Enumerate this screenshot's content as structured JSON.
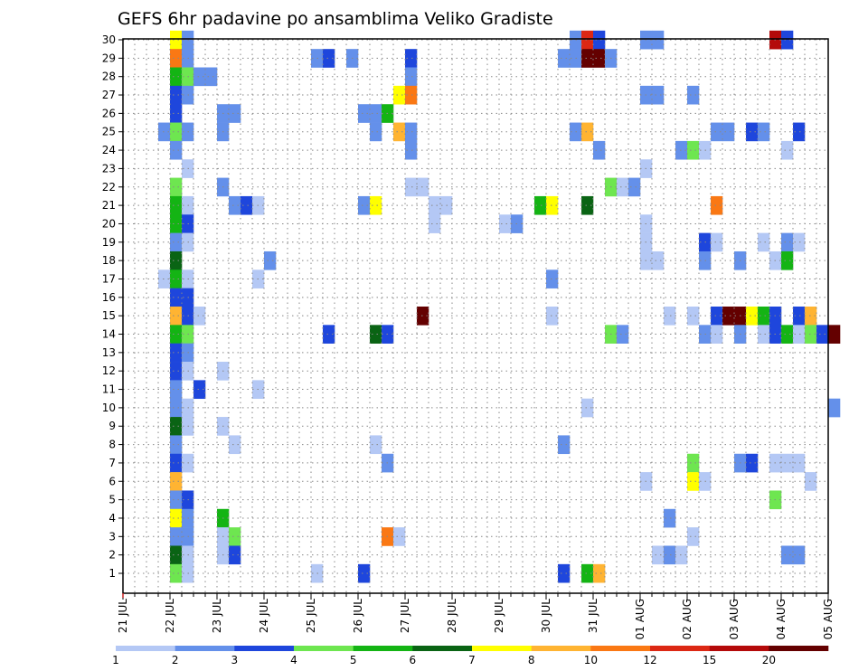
{
  "chart_data": {
    "type": "heatmap",
    "title": "GEFS 6hr padavine po ansamblima Veliko Gradiste",
    "xlabel": "",
    "ylabel": "",
    "x_tick_labels": [
      "21 JUL",
      "22 JUL",
      "23 JUL",
      "24 JUL",
      "25 JUL",
      "26 JUL",
      "27 JUL",
      "28 JUL",
      "29 JUL",
      "30 JUL",
      "31 JUL",
      "01 AUG",
      "02 AUG",
      "03 AUG",
      "04 AUG",
      "05 AUG"
    ],
    "y_tick_labels": [
      "1",
      "2",
      "3",
      "4",
      "5",
      "6",
      "7",
      "8",
      "9",
      "10",
      "11",
      "12",
      "13",
      "14",
      "15",
      "16",
      "17",
      "18",
      "19",
      "20",
      "21",
      "22",
      "23",
      "24",
      "25",
      "26",
      "27",
      "28",
      "29",
      "30"
    ],
    "x_unit": "6-hour step (4 per day)",
    "y_range": [
      1,
      30
    ],
    "grid": true,
    "colorbar": {
      "labels": [
        "1",
        "2",
        "3",
        "4",
        "5",
        "6",
        "7",
        "8",
        "10",
        "12",
        "15",
        "20"
      ],
      "colors": [
        "#b4c8f5",
        "#6490ea",
        "#1e46dc",
        "#6ee650",
        "#14b414",
        "#0a6414",
        "#ffff00",
        "#ffb432",
        "#fa7814",
        "#dc2814",
        "#b40a0a",
        "#640000"
      ]
    },
    "cells": [
      [
        4,
        30,
        6
      ],
      [
        5,
        30,
        1
      ],
      [
        38,
        30,
        1
      ],
      [
        39,
        30,
        9
      ],
      [
        40,
        30,
        2
      ],
      [
        44,
        30,
        1
      ],
      [
        45,
        30,
        1
      ],
      [
        55,
        30,
        10
      ],
      [
        56,
        30,
        2
      ],
      [
        4,
        29,
        8
      ],
      [
        5,
        29,
        1
      ],
      [
        16,
        29,
        1
      ],
      [
        17,
        29,
        2
      ],
      [
        19,
        29,
        1
      ],
      [
        24,
        29,
        2
      ],
      [
        37,
        29,
        1
      ],
      [
        38,
        29,
        1
      ],
      [
        39,
        29,
        11
      ],
      [
        40,
        29,
        11
      ],
      [
        41,
        29,
        1
      ],
      [
        4,
        28,
        4
      ],
      [
        5,
        28,
        3
      ],
      [
        6,
        28,
        1
      ],
      [
        7,
        28,
        1
      ],
      [
        24,
        28,
        1
      ],
      [
        4,
        27,
        2
      ],
      [
        5,
        27,
        1
      ],
      [
        23,
        27,
        6
      ],
      [
        24,
        27,
        8
      ],
      [
        44,
        27,
        1
      ],
      [
        45,
        27,
        1
      ],
      [
        48,
        27,
        1
      ],
      [
        4,
        26,
        2
      ],
      [
        8,
        26,
        1
      ],
      [
        9,
        26,
        1
      ],
      [
        20,
        26,
        1
      ],
      [
        21,
        26,
        1
      ],
      [
        22,
        26,
        4
      ],
      [
        3,
        25,
        1
      ],
      [
        4,
        25,
        3
      ],
      [
        5,
        25,
        1
      ],
      [
        8,
        25,
        1
      ],
      [
        21,
        25,
        1
      ],
      [
        23,
        25,
        7
      ],
      [
        24,
        25,
        1
      ],
      [
        38,
        25,
        1
      ],
      [
        39,
        25,
        7
      ],
      [
        50,
        25,
        1
      ],
      [
        51,
        25,
        1
      ],
      [
        53,
        25,
        2
      ],
      [
        54,
        25,
        1
      ],
      [
        57,
        25,
        2
      ],
      [
        4,
        24,
        1
      ],
      [
        24,
        24,
        1
      ],
      [
        40,
        24,
        1
      ],
      [
        47,
        24,
        1
      ],
      [
        48,
        24,
        3
      ],
      [
        49,
        24,
        0
      ],
      [
        56,
        24,
        0
      ],
      [
        5,
        23,
        0
      ],
      [
        44,
        23,
        0
      ],
      [
        4,
        22,
        3
      ],
      [
        8,
        22,
        1
      ],
      [
        24,
        22,
        0
      ],
      [
        25,
        22,
        0
      ],
      [
        41,
        22,
        3
      ],
      [
        42,
        22,
        0
      ],
      [
        43,
        22,
        1
      ],
      [
        4,
        21,
        4
      ],
      [
        5,
        21,
        0
      ],
      [
        9,
        21,
        1
      ],
      [
        10,
        21,
        2
      ],
      [
        11,
        21,
        0
      ],
      [
        20,
        21,
        1
      ],
      [
        21,
        21,
        6
      ],
      [
        26,
        21,
        0
      ],
      [
        27,
        21,
        0
      ],
      [
        35,
        21,
        4
      ],
      [
        36,
        21,
        6
      ],
      [
        39,
        21,
        5
      ],
      [
        50,
        21,
        8
      ],
      [
        4,
        20,
        4
      ],
      [
        5,
        20,
        2
      ],
      [
        26,
        20,
        0
      ],
      [
        32,
        20,
        0
      ],
      [
        33,
        20,
        1
      ],
      [
        44,
        20,
        0
      ],
      [
        4,
        19,
        1
      ],
      [
        5,
        19,
        0
      ],
      [
        44,
        19,
        0
      ],
      [
        49,
        19,
        2
      ],
      [
        50,
        19,
        0
      ],
      [
        54,
        19,
        0
      ],
      [
        56,
        19,
        1
      ],
      [
        57,
        19,
        0
      ],
      [
        4,
        18,
        5
      ],
      [
        12,
        18,
        1
      ],
      [
        44,
        18,
        0
      ],
      [
        45,
        18,
        0
      ],
      [
        49,
        18,
        1
      ],
      [
        52,
        18,
        1
      ],
      [
        55,
        18,
        0
      ],
      [
        56,
        18,
        4
      ],
      [
        3,
        17,
        0
      ],
      [
        4,
        17,
        4
      ],
      [
        5,
        17,
        0
      ],
      [
        11,
        17,
        0
      ],
      [
        36,
        17,
        1
      ],
      [
        4,
        16,
        2
      ],
      [
        5,
        16,
        2
      ],
      [
        4,
        15,
        7
      ],
      [
        5,
        15,
        2
      ],
      [
        6,
        15,
        0
      ],
      [
        25,
        15,
        11
      ],
      [
        36,
        15,
        0
      ],
      [
        46,
        15,
        0
      ],
      [
        48,
        15,
        0
      ],
      [
        50,
        15,
        2
      ],
      [
        51,
        15,
        11
      ],
      [
        52,
        15,
        11
      ],
      [
        53,
        15,
        6
      ],
      [
        54,
        15,
        4
      ],
      [
        55,
        15,
        2
      ],
      [
        57,
        15,
        2
      ],
      [
        58,
        15,
        7
      ],
      [
        4,
        14,
        4
      ],
      [
        5,
        14,
        3
      ],
      [
        17,
        14,
        2
      ],
      [
        21,
        14,
        5
      ],
      [
        22,
        14,
        2
      ],
      [
        41,
        14,
        3
      ],
      [
        42,
        14,
        1
      ],
      [
        49,
        14,
        1
      ],
      [
        50,
        14,
        0
      ],
      [
        52,
        14,
        1
      ],
      [
        54,
        14,
        0
      ],
      [
        55,
        14,
        2
      ],
      [
        56,
        14,
        4
      ],
      [
        57,
        14,
        0
      ],
      [
        58,
        14,
        3
      ],
      [
        59,
        14,
        2
      ],
      [
        60,
        14,
        11
      ],
      [
        4,
        13,
        2
      ],
      [
        5,
        13,
        1
      ],
      [
        4,
        12,
        2
      ],
      [
        5,
        12,
        0
      ],
      [
        8,
        12,
        0
      ],
      [
        4,
        11,
        1
      ],
      [
        6,
        11,
        2
      ],
      [
        11,
        11,
        0
      ],
      [
        4,
        10,
        1
      ],
      [
        5,
        10,
        0
      ],
      [
        39,
        10,
        0
      ],
      [
        60,
        10,
        1
      ],
      [
        4,
        9,
        5
      ],
      [
        5,
        9,
        0
      ],
      [
        8,
        9,
        0
      ],
      [
        4,
        8,
        1
      ],
      [
        9,
        8,
        0
      ],
      [
        21,
        8,
        0
      ],
      [
        37,
        8,
        1
      ],
      [
        4,
        7,
        2
      ],
      [
        5,
        7,
        0
      ],
      [
        22,
        7,
        1
      ],
      [
        48,
        7,
        3
      ],
      [
        52,
        7,
        1
      ],
      [
        53,
        7,
        2
      ],
      [
        55,
        7,
        0
      ],
      [
        56,
        7,
        0
      ],
      [
        57,
        7,
        0
      ],
      [
        4,
        6,
        7
      ],
      [
        44,
        6,
        0
      ],
      [
        48,
        6,
        6
      ],
      [
        49,
        6,
        0
      ],
      [
        58,
        6,
        0
      ],
      [
        4,
        5,
        1
      ],
      [
        5,
        5,
        2
      ],
      [
        55,
        5,
        3
      ],
      [
        4,
        4,
        6
      ],
      [
        5,
        4,
        1
      ],
      [
        8,
        4,
        4
      ],
      [
        46,
        4,
        1
      ],
      [
        4,
        3,
        1
      ],
      [
        5,
        3,
        1
      ],
      [
        8,
        3,
        0
      ],
      [
        9,
        3,
        3
      ],
      [
        22,
        3,
        8
      ],
      [
        23,
        3,
        0
      ],
      [
        48,
        3,
        0
      ],
      [
        4,
        2,
        5
      ],
      [
        5,
        2,
        0
      ],
      [
        8,
        2,
        0
      ],
      [
        9,
        2,
        2
      ],
      [
        45,
        2,
        0
      ],
      [
        46,
        2,
        1
      ],
      [
        47,
        2,
        0
      ],
      [
        56,
        2,
        1
      ],
      [
        57,
        2,
        1
      ],
      [
        4,
        1,
        3
      ],
      [
        5,
        1,
        0
      ],
      [
        16,
        1,
        0
      ],
      [
        20,
        1,
        2
      ],
      [
        37,
        1,
        2
      ],
      [
        39,
        1,
        4
      ],
      [
        40,
        1,
        7
      ]
    ]
  }
}
